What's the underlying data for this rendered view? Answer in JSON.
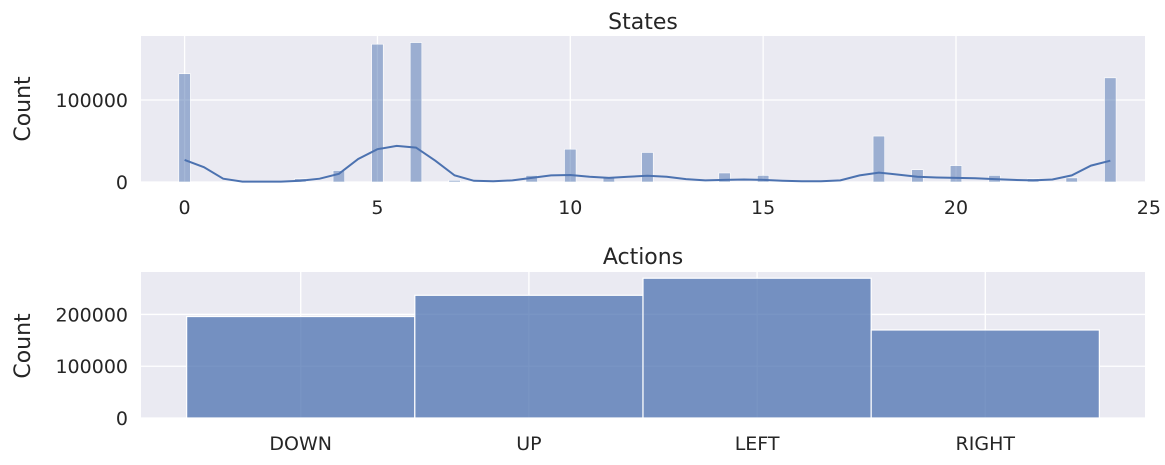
{
  "chart_data": [
    {
      "type": "bar",
      "title": "States",
      "xlabel": "",
      "ylabel": "Count",
      "xlim": [
        -1.13,
        24.9
      ],
      "ylim": [
        0,
        178000
      ],
      "xticks": [
        0,
        5,
        10,
        15,
        20,
        25
      ],
      "yticks": [
        0,
        100000
      ],
      "grid": true,
      "bin_width": 0.3,
      "bars": [
        {
          "x": 0,
          "value": 132000
        },
        {
          "x": 3,
          "value": 4000
        },
        {
          "x": 4,
          "value": 14000
        },
        {
          "x": 5,
          "value": 168000
        },
        {
          "x": 6,
          "value": 170000
        },
        {
          "x": 7,
          "value": 2000
        },
        {
          "x": 9,
          "value": 8000
        },
        {
          "x": 10,
          "value": 40000
        },
        {
          "x": 11,
          "value": 5000
        },
        {
          "x": 12,
          "value": 36000
        },
        {
          "x": 14,
          "value": 11000
        },
        {
          "x": 15,
          "value": 8000
        },
        {
          "x": 18,
          "value": 56000
        },
        {
          "x": 19,
          "value": 15000
        },
        {
          "x": 20,
          "value": 20000
        },
        {
          "x": 21,
          "value": 8000
        },
        {
          "x": 22,
          "value": 4000
        },
        {
          "x": 23,
          "value": 5000
        },
        {
          "x": 24,
          "value": 127000
        }
      ],
      "kde": [
        [
          0,
          27000
        ],
        [
          0.5,
          18000
        ],
        [
          1,
          4000
        ],
        [
          1.5,
          500
        ],
        [
          2,
          500
        ],
        [
          2.5,
          500
        ],
        [
          3,
          1500
        ],
        [
          3.5,
          4000
        ],
        [
          4,
          10000
        ],
        [
          4.5,
          28000
        ],
        [
          5,
          40000
        ],
        [
          5.5,
          44000
        ],
        [
          6,
          42000
        ],
        [
          6.5,
          26000
        ],
        [
          7,
          8000
        ],
        [
          7.5,
          1500
        ],
        [
          8,
          1000
        ],
        [
          8.5,
          2000
        ],
        [
          9,
          5000
        ],
        [
          9.5,
          8000
        ],
        [
          10,
          8500
        ],
        [
          10.5,
          6500
        ],
        [
          11,
          5000
        ],
        [
          11.5,
          6500
        ],
        [
          12,
          7500
        ],
        [
          12.5,
          6500
        ],
        [
          13,
          3500
        ],
        [
          13.5,
          2000
        ],
        [
          14,
          2500
        ],
        [
          14.5,
          3000
        ],
        [
          15,
          2500
        ],
        [
          15.5,
          1500
        ],
        [
          16,
          800
        ],
        [
          16.5,
          800
        ],
        [
          17,
          2000
        ],
        [
          17.5,
          8000
        ],
        [
          18,
          11500
        ],
        [
          18.5,
          9000
        ],
        [
          19,
          6500
        ],
        [
          19.5,
          5500
        ],
        [
          20,
          5000
        ],
        [
          20.5,
          4500
        ],
        [
          21,
          3500
        ],
        [
          21.5,
          2500
        ],
        [
          22,
          2000
        ],
        [
          22.5,
          3000
        ],
        [
          23,
          8000
        ],
        [
          23.5,
          20000
        ],
        [
          24,
          26000
        ]
      ],
      "color": "#4c72b0",
      "bar_alpha": 0.5
    },
    {
      "type": "bar",
      "title": "Actions",
      "xlabel": "",
      "ylabel": "Count",
      "ylim": [
        0,
        282000
      ],
      "yticks": [
        0,
        100000,
        200000
      ],
      "grid": true,
      "categories": [
        "DOWN",
        "UP",
        "LEFT",
        "RIGHT"
      ],
      "values": [
        196000,
        237000,
        270000,
        170000
      ],
      "color": "#4c72b0",
      "bar_alpha": 0.75
    }
  ]
}
